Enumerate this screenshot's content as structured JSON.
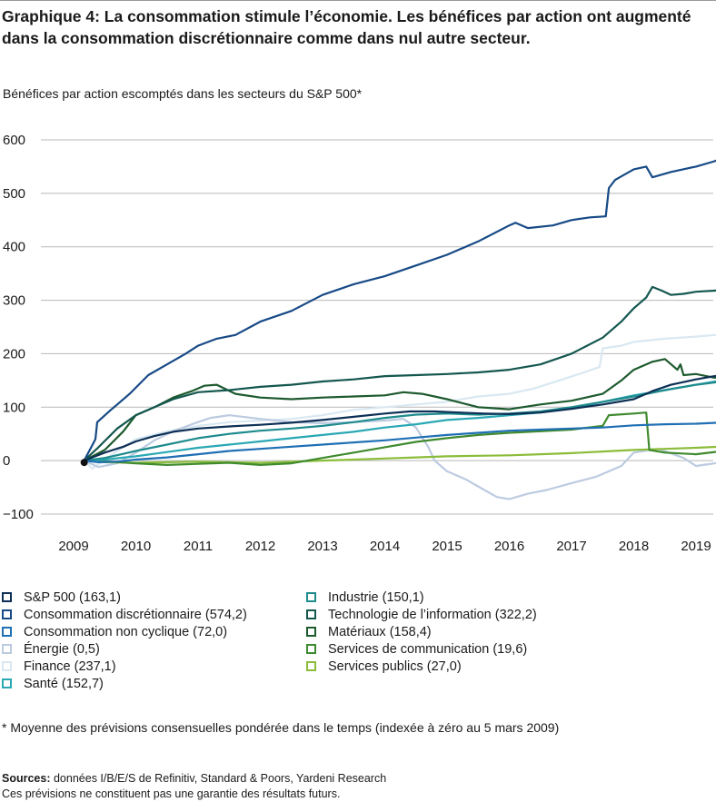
{
  "header": {
    "title": "Graphique 4: La consommation stimule l’économie. Les bénéfices par action ont augmenté dans la consommation discrétionnaire comme dans nul autre secteur.",
    "subtitle": "Bénéfices par action escomptés dans les secteurs du S&P 500*"
  },
  "footnote": "* Moyenne des prévisions consensuelles pondérée dans le temps (indexée à zéro au 5 mars 2009)",
  "sources": {
    "label": "Sources:",
    "text": "données I/B/E/S de Refinitiv, Standard & Poors, Yardeni Research",
    "disclaimer": "Ces prévisions ne constituent pas une garantie des résultats futurs."
  },
  "chart_data": {
    "type": "line",
    "x_ticks": [
      "2009",
      "2010",
      "2011",
      "2012",
      "2013",
      "2014",
      "2015",
      "2016",
      "2017",
      "2018",
      "2019"
    ],
    "y_ticks": [
      "600",
      "500",
      "400",
      "300",
      "200",
      "100",
      "0",
      "−100"
    ],
    "ylim": [
      -100,
      620
    ],
    "xlim": [
      2009.0,
      2019.6
    ],
    "grid": true,
    "legend_position": "bottom",
    "series": [
      {
        "name": "S&P 500",
        "label": "S&P 500 (163,1)",
        "color": "#0d2f55",
        "legend_col": 0,
        "x": [
          2009.17,
          2009.3,
          2009.5,
          2009.8,
          2010.0,
          2010.3,
          2010.6,
          2011.0,
          2011.5,
          2012.0,
          2012.5,
          2013.0,
          2013.5,
          2014.0,
          2014.4,
          2014.8,
          2015.2,
          2015.6,
          2016.0,
          2016.5,
          2017.0,
          2017.5,
          2018.0,
          2018.3,
          2018.6,
          2019.0,
          2019.3,
          2019.55
        ],
        "y": [
          0,
          6,
          15,
          26,
          36,
          46,
          54,
          60,
          64,
          67,
          71,
          76,
          82,
          88,
          92,
          92,
          90,
          88,
          87,
          90,
          97,
          105,
          115,
          130,
          142,
          152,
          158,
          163
        ]
      },
      {
        "name": "Consommation discrétionnaire",
        "label": "Consommation discrétionnaire (574,2)",
        "color": "#174a86",
        "legend_col": 0,
        "x": [
          2009.17,
          2009.35,
          2009.38,
          2009.6,
          2009.9,
          2010.2,
          2010.5,
          2010.8,
          2011.0,
          2011.3,
          2011.6,
          2012.0,
          2012.5,
          2013.0,
          2013.5,
          2014.0,
          2014.5,
          2015.0,
          2015.5,
          2016.0,
          2016.1,
          2016.3,
          2016.7,
          2017.0,
          2017.3,
          2017.55,
          2017.6,
          2017.7,
          2018.0,
          2018.2,
          2018.3,
          2018.6,
          2019.0,
          2019.3,
          2019.55
        ],
        "y": [
          0,
          40,
          72,
          95,
          125,
          160,
          180,
          200,
          215,
          228,
          235,
          260,
          280,
          310,
          330,
          345,
          365,
          385,
          410,
          440,
          445,
          435,
          440,
          450,
          455,
          457,
          510,
          525,
          545,
          550,
          530,
          540,
          550,
          560,
          574
        ]
      },
      {
        "name": "Consommation non cyclique",
        "label": "Consommation non cyclique (72,0)",
        "color": "#1f6fb4",
        "legend_col": 0,
        "x": [
          2009.17,
          2009.4,
          2009.7,
          2010.0,
          2010.5,
          2011.0,
          2011.5,
          2012.0,
          2012.5,
          2013.0,
          2013.5,
          2014.0,
          2014.5,
          2015.0,
          2015.5,
          2016.0,
          2016.5,
          2017.0,
          2017.5,
          2018.0,
          2018.5,
          2019.0,
          2019.55
        ],
        "y": [
          0,
          -3,
          -2,
          2,
          6,
          12,
          18,
          22,
          26,
          30,
          34,
          38,
          43,
          48,
          52,
          56,
          58,
          60,
          62,
          66,
          68,
          69,
          72
        ]
      },
      {
        "name": "Énergie",
        "label": "Énergie (0,5)",
        "color": "#bccbe0",
        "legend_col": 0,
        "x": [
          2009.17,
          2009.4,
          2009.7,
          2010.0,
          2010.3,
          2010.6,
          2010.9,
          2011.2,
          2011.5,
          2012.0,
          2012.5,
          2013.0,
          2013.5,
          2014.0,
          2014.3,
          2014.5,
          2014.7,
          2014.8,
          2015.0,
          2015.3,
          2015.6,
          2015.8,
          2016.0,
          2016.3,
          2016.6,
          2017.0,
          2017.4,
          2017.8,
          2018.0,
          2018.4,
          2018.8,
          2019.0,
          2019.3,
          2019.55
        ],
        "y": [
          0,
          -12,
          -5,
          15,
          38,
          55,
          68,
          80,
          85,
          78,
          72,
          70,
          72,
          75,
          78,
          62,
          25,
          0,
          -20,
          -35,
          -55,
          -68,
          -72,
          -62,
          -55,
          -42,
          -30,
          -10,
          15,
          22,
          5,
          -10,
          -5,
          0.5
        ]
      },
      {
        "name": "Finance",
        "label": "Finance (237,1)",
        "color": "#d9e8f1",
        "legend_col": 0,
        "x": [
          2009.17,
          2009.3,
          2009.6,
          2010.0,
          2010.5,
          2011.0,
          2011.5,
          2012.0,
          2012.5,
          2013.0,
          2013.5,
          2014.0,
          2014.5,
          2015.0,
          2015.5,
          2016.0,
          2016.4,
          2016.8,
          2017.2,
          2017.45,
          2017.5,
          2017.8,
          2018.0,
          2018.5,
          2019.0,
          2019.3,
          2019.55
        ],
        "y": [
          0,
          -15,
          10,
          40,
          55,
          65,
          72,
          75,
          78,
          85,
          95,
          100,
          105,
          110,
          120,
          125,
          135,
          150,
          165,
          175,
          210,
          215,
          222,
          228,
          232,
          235,
          237
        ]
      },
      {
        "name": "Santé",
        "label": "Santé (152,7)",
        "color": "#2aa8b4",
        "legend_col": 0,
        "x": [
          2009.17,
          2009.5,
          2010.0,
          2010.5,
          2011.0,
          2011.5,
          2012.0,
          2012.5,
          2013.0,
          2013.5,
          2014.0,
          2014.5,
          2015.0,
          2015.5,
          2016.0,
          2016.5,
          2017.0,
          2017.5,
          2018.0,
          2018.5,
          2019.0,
          2019.55
        ],
        "y": [
          0,
          2,
          8,
          16,
          24,
          30,
          36,
          42,
          48,
          54,
          62,
          68,
          76,
          80,
          85,
          90,
          98,
          110,
          122,
          132,
          142,
          152.7
        ]
      },
      {
        "name": "Industrie",
        "label": "Industrie (150,1)",
        "color": "#1f8b8d",
        "legend_col": 1,
        "x": [
          2009.17,
          2009.5,
          2010.0,
          2010.5,
          2011.0,
          2011.5,
          2012.0,
          2012.5,
          2013.0,
          2013.5,
          2014.0,
          2014.5,
          2015.0,
          2015.5,
          2016.0,
          2016.5,
          2017.0,
          2017.5,
          2018.0,
          2018.5,
          2019.0,
          2019.55
        ],
        "y": [
          0,
          5,
          18,
          30,
          42,
          50,
          56,
          60,
          65,
          72,
          80,
          86,
          88,
          86,
          88,
          92,
          100,
          110,
          120,
          132,
          142,
          150
        ]
      },
      {
        "name": "Technologie de l’information",
        "label": "Technologie de l’information (322,2)",
        "color": "#14574f",
        "legend_col": 1,
        "x": [
          2009.17,
          2009.4,
          2009.7,
          2010.0,
          2010.3,
          2010.6,
          2011.0,
          2011.5,
          2012.0,
          2012.5,
          2013.0,
          2013.5,
          2014.0,
          2014.5,
          2015.0,
          2015.5,
          2016.0,
          2016.5,
          2017.0,
          2017.5,
          2017.8,
          2018.0,
          2018.2,
          2018.3,
          2018.45,
          2018.6,
          2018.8,
          2019.0,
          2019.3,
          2019.55
        ],
        "y": [
          0,
          25,
          60,
          85,
          100,
          115,
          128,
          132,
          138,
          142,
          148,
          152,
          158,
          160,
          162,
          165,
          170,
          180,
          200,
          230,
          260,
          285,
          305,
          325,
          318,
          310,
          312,
          316,
          318,
          322
        ]
      },
      {
        "name": "Matériaux",
        "label": "Matériaux (158,4)",
        "color": "#1d5a2e",
        "legend_col": 1,
        "x": [
          2009.17,
          2009.5,
          2009.8,
          2010.0,
          2010.3,
          2010.6,
          2010.9,
          2011.1,
          2011.3,
          2011.6,
          2012.0,
          2012.5,
          2013.0,
          2013.5,
          2014.0,
          2014.3,
          2014.6,
          2015.0,
          2015.5,
          2016.0,
          2016.5,
          2017.0,
          2017.5,
          2017.8,
          2018.0,
          2018.3,
          2018.5,
          2018.7,
          2018.75,
          2018.8,
          2019.0,
          2019.3,
          2019.55
        ],
        "y": [
          0,
          20,
          55,
          85,
          100,
          118,
          130,
          140,
          142,
          125,
          118,
          115,
          118,
          120,
          122,
          128,
          125,
          115,
          100,
          96,
          105,
          112,
          125,
          150,
          170,
          185,
          190,
          170,
          180,
          160,
          162,
          155,
          158
        ]
      },
      {
        "name": "Services de communication",
        "label": "Services de communication (19,6)",
        "color": "#3f8a2e",
        "legend_col": 1,
        "x": [
          2009.17,
          2009.6,
          2010.0,
          2010.5,
          2011.0,
          2011.5,
          2012.0,
          2012.5,
          2013.0,
          2013.5,
          2014.0,
          2014.5,
          2015.0,
          2015.5,
          2016.0,
          2016.5,
          2017.0,
          2017.5,
          2017.6,
          2018.0,
          2018.2,
          2018.25,
          2018.5,
          2019.0,
          2019.55
        ],
        "y": [
          0,
          -2,
          -5,
          -8,
          -6,
          -4,
          -8,
          -5,
          5,
          15,
          25,
          35,
          42,
          48,
          52,
          55,
          58,
          65,
          85,
          88,
          90,
          20,
          15,
          12,
          19.6
        ]
      },
      {
        "name": "Services publics",
        "label": "Services publics (27,0)",
        "color": "#8bbd3a",
        "legend_col": 1,
        "x": [
          2009.17,
          2009.5,
          2010.0,
          2010.5,
          2011.0,
          2011.5,
          2012.0,
          2012.5,
          2013.0,
          2013.5,
          2014.0,
          2014.5,
          2015.0,
          2015.5,
          2016.0,
          2016.5,
          2017.0,
          2017.5,
          2018.0,
          2018.5,
          2019.0,
          2019.55
        ],
        "y": [
          0,
          -3,
          -4,
          -3,
          -2,
          -3,
          -4,
          -2,
          0,
          2,
          4,
          6,
          8,
          9,
          10,
          12,
          14,
          17,
          20,
          22,
          24,
          27
        ]
      }
    ]
  }
}
